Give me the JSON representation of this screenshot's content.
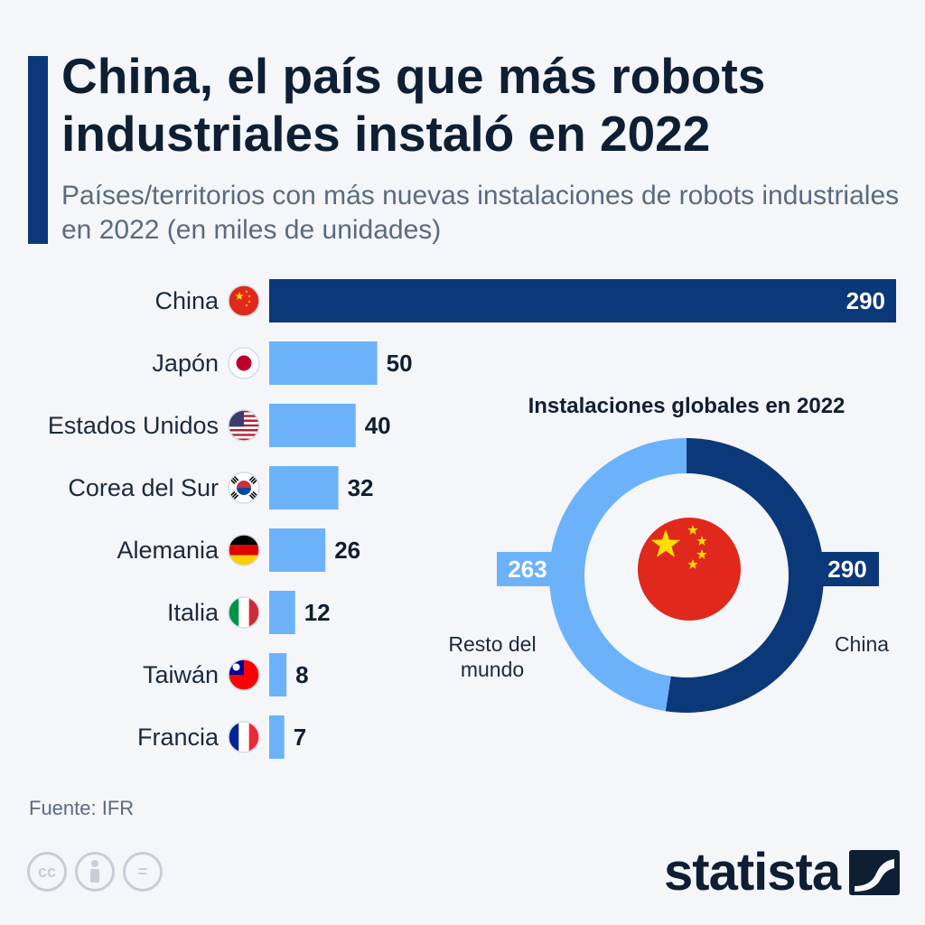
{
  "title": "China, el país que más robots industriales instaló en 2022",
  "subtitle": "Países/territorios con más nuevas instalaciones de robots industriales en 2022 (en miles de unidades)",
  "source": "Fuente: IFR",
  "logo_text": "statista",
  "license_icons": [
    "cc-icon",
    "person-icon",
    "equal-icon"
  ],
  "license_glyphs": [
    "cc",
    "",
    "="
  ],
  "colors": {
    "china_bar": "#0b3879",
    "other_bar": "#6cb2fb",
    "text_dark": "#0e1f33",
    "china_red": "#e0281c",
    "star_yellow": "#ffde00"
  },
  "chart_data": [
    {
      "type": "bar",
      "orientation": "horizontal",
      "categories": [
        "China",
        "Japón",
        "Estados Unidos",
        "Corea del Sur",
        "Alemania",
        "Italia",
        "Taiwán",
        "Francia"
      ],
      "values": [
        290,
        50,
        40,
        32,
        26,
        12,
        8,
        7
      ],
      "flags": [
        "china-flag-icon",
        "japan-flag-icon",
        "usa-flag-icon",
        "south-korea-flag-icon",
        "germany-flag-icon",
        "italy-flag-icon",
        "taiwan-flag-icon",
        "france-flag-icon"
      ],
      "highlight": "China"
    },
    {
      "type": "pie",
      "variant": "donut",
      "title": "Instalaciones globales en 2022",
      "slices": [
        {
          "label": "China",
          "value": 290,
          "color": "#0b3879"
        },
        {
          "label": "Resto del mundo",
          "value": 263,
          "color": "#6cb2fb"
        }
      ]
    }
  ]
}
